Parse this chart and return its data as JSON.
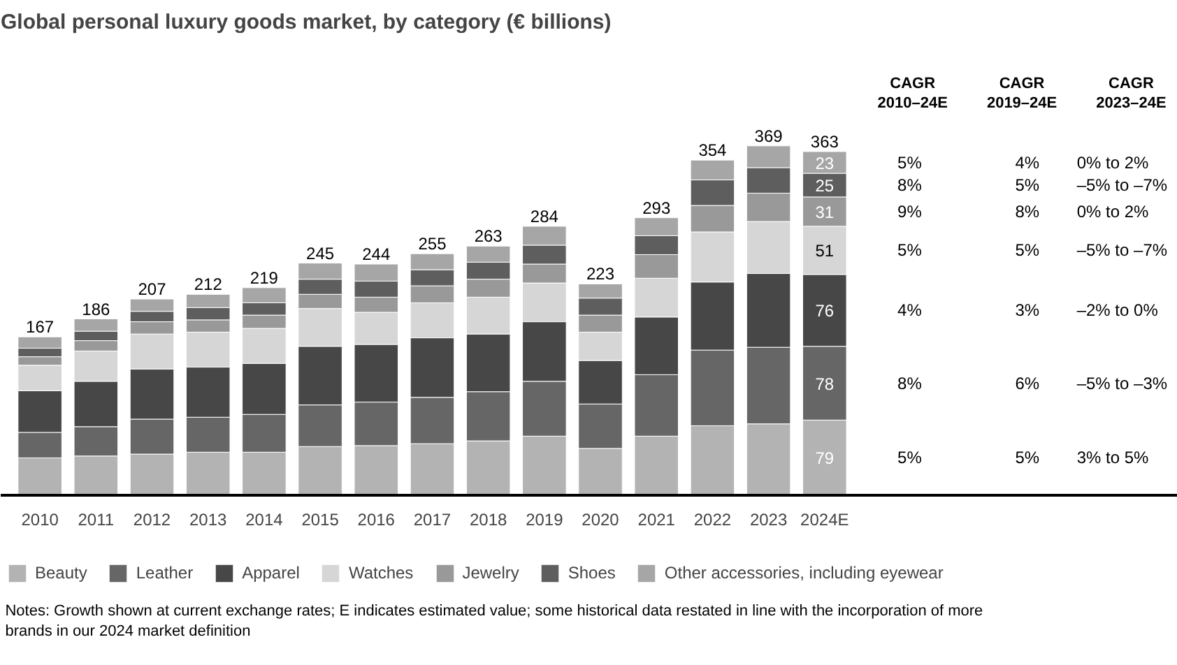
{
  "chart_data": {
    "type": "bar",
    "stacked": true,
    "title": "Global personal luxury goods market, by category (€ billions)",
    "categories": [
      "2010",
      "2011",
      "2012",
      "2013",
      "2014",
      "2015",
      "2016",
      "2017",
      "2018",
      "2019",
      "2020",
      "2021",
      "2022",
      "2023",
      "2024E"
    ],
    "series": [
      {
        "name": "Beauty",
        "color": "#b3b3b3",
        "values": [
          39,
          41,
          43,
          45,
          45,
          51,
          52,
          54,
          57,
          62,
          49,
          62,
          73,
          75,
          79
        ],
        "value_labels": [
          null,
          null,
          null,
          null,
          null,
          null,
          null,
          null,
          null,
          null,
          null,
          null,
          null,
          null,
          "79"
        ]
      },
      {
        "name": "Leather",
        "color": "#666666",
        "values": [
          27,
          31,
          37,
          37,
          40,
          44,
          46,
          49,
          52,
          58,
          47,
          65,
          80,
          81,
          78
        ],
        "value_labels": [
          null,
          null,
          null,
          null,
          null,
          null,
          null,
          null,
          null,
          null,
          null,
          null,
          null,
          null,
          "78"
        ]
      },
      {
        "name": "Apparel",
        "color": "#474747",
        "values": [
          44,
          48,
          53,
          53,
          54,
          62,
          61,
          63,
          61,
          63,
          46,
          61,
          72,
          78,
          76
        ],
        "value_labels": [
          null,
          null,
          null,
          null,
          null,
          null,
          null,
          null,
          null,
          null,
          null,
          null,
          null,
          null,
          "76"
        ]
      },
      {
        "name": "Watches",
        "color": "#d6d6d6",
        "values": [
          27,
          32,
          37,
          37,
          37,
          40,
          34,
          37,
          39,
          41,
          30,
          41,
          53,
          55,
          51
        ],
        "value_labels": [
          null,
          null,
          null,
          null,
          null,
          null,
          null,
          null,
          null,
          null,
          null,
          null,
          null,
          null,
          "51"
        ]
      },
      {
        "name": "Jewelry",
        "color": "#999999",
        "values": [
          9,
          11,
          13,
          13,
          14,
          15,
          16,
          18,
          19,
          20,
          18,
          25,
          28,
          30,
          31
        ],
        "value_labels": [
          null,
          null,
          null,
          null,
          null,
          null,
          null,
          null,
          null,
          null,
          null,
          null,
          null,
          null,
          "31"
        ]
      },
      {
        "name": "Shoes",
        "color": "#5e5e5e",
        "values": [
          9,
          10,
          11,
          13,
          13,
          16,
          17,
          17,
          18,
          20,
          18,
          20,
          27,
          27,
          25
        ],
        "value_labels": [
          null,
          null,
          null,
          null,
          null,
          null,
          null,
          null,
          null,
          null,
          null,
          null,
          null,
          null,
          "25"
        ]
      },
      {
        "name": "Other accessories, including eyewear",
        "color": "#a6a6a6",
        "values": [
          12,
          13,
          13,
          14,
          16,
          17,
          18,
          17,
          17,
          20,
          15,
          19,
          21,
          23,
          23
        ],
        "value_labels": [
          null,
          null,
          null,
          null,
          null,
          null,
          null,
          null,
          null,
          null,
          null,
          null,
          null,
          null,
          "23"
        ]
      }
    ],
    "totals": [
      "167",
      "186",
      "207",
      "212",
      "219",
      "245",
      "244",
      "255",
      "263",
      "284",
      "223",
      "293",
      "354",
      "369",
      "363"
    ],
    "legend": "bottom",
    "annotations": [
      "CAGR\n2010–24E",
      "CAGR\n2019–24E",
      "CAGR\n2023–24E",
      "5%",
      "4%",
      "0% to 2%",
      "8%",
      "5%",
      "–5% to –7%",
      "9%",
      "8%",
      "0% to 2%",
      "5%",
      "5%",
      "–5% to –7%",
      "4%",
      "3%",
      "–2% to 0%",
      "8%",
      "6%",
      "–5% to –3%",
      "5%",
      "5%",
      "3% to 5%",
      "Notes: Growth shown at current exchange rates; E indicates estimated value; some historical data restated in line with the incorporation of more brands in our 2024 market definition"
    ]
  }
}
